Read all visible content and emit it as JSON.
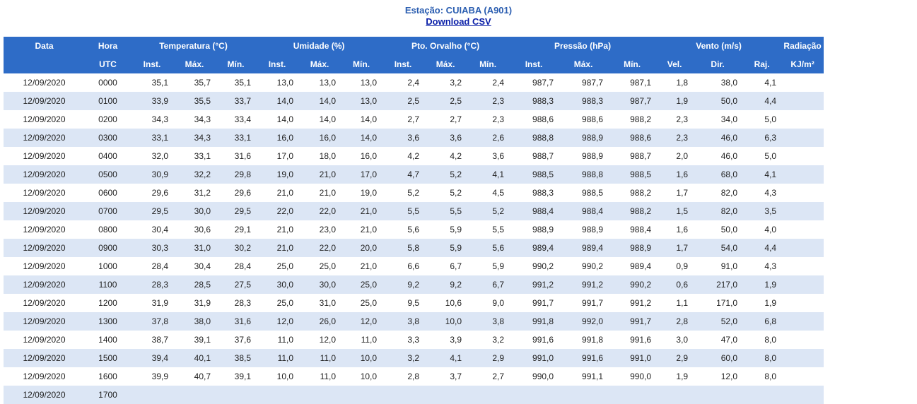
{
  "header": {
    "station": "Estação: CUIABA (A901)",
    "download": "Download CSV"
  },
  "table": {
    "groups": [
      "Data",
      "Hora",
      "Temperatura (°C)",
      "Umidade (%)",
      "Pto. Orvalho (°C)",
      "Pressão (hPa)",
      "Vento (m/s)",
      "Radiação"
    ],
    "sub": [
      "UTC",
      "Inst.",
      "Máx.",
      "Mín.",
      "Inst.",
      "Máx.",
      "Mín.",
      "Inst.",
      "Máx.",
      "Mín.",
      "Inst.",
      "Máx.",
      "Mín.",
      "Vel.",
      "Dir.",
      "Raj.",
      "KJ/m²"
    ],
    "rows": [
      [
        "12/09/2020",
        "0000",
        "35,1",
        "35,7",
        "35,1",
        "13,0",
        "13,0",
        "13,0",
        "2,4",
        "3,2",
        "2,4",
        "987,7",
        "987,7",
        "987,1",
        "1,8",
        "38,0",
        "4,1"
      ],
      [
        "12/09/2020",
        "0100",
        "33,9",
        "35,5",
        "33,7",
        "14,0",
        "14,0",
        "13,0",
        "2,5",
        "2,5",
        "2,3",
        "988,3",
        "988,3",
        "987,7",
        "1,9",
        "50,0",
        "4,4"
      ],
      [
        "12/09/2020",
        "0200",
        "34,3",
        "34,3",
        "33,4",
        "14,0",
        "14,0",
        "14,0",
        "2,7",
        "2,7",
        "2,3",
        "988,6",
        "988,6",
        "988,2",
        "2,3",
        "34,0",
        "5,0"
      ],
      [
        "12/09/2020",
        "0300",
        "33,1",
        "34,3",
        "33,1",
        "16,0",
        "16,0",
        "14,0",
        "3,6",
        "3,6",
        "2,6",
        "988,8",
        "988,9",
        "988,6",
        "2,3",
        "46,0",
        "6,3"
      ],
      [
        "12/09/2020",
        "0400",
        "32,0",
        "33,1",
        "31,6",
        "17,0",
        "18,0",
        "16,0",
        "4,2",
        "4,2",
        "3,6",
        "988,7",
        "988,9",
        "988,7",
        "2,0",
        "46,0",
        "5,0"
      ],
      [
        "12/09/2020",
        "0500",
        "30,9",
        "32,2",
        "29,8",
        "19,0",
        "21,0",
        "17,0",
        "4,7",
        "5,2",
        "4,1",
        "988,5",
        "988,8",
        "988,5",
        "1,6",
        "68,0",
        "4,1"
      ],
      [
        "12/09/2020",
        "0600",
        "29,6",
        "31,2",
        "29,6",
        "21,0",
        "21,0",
        "19,0",
        "5,2",
        "5,2",
        "4,5",
        "988,3",
        "988,5",
        "988,2",
        "1,7",
        "82,0",
        "4,3"
      ],
      [
        "12/09/2020",
        "0700",
        "29,5",
        "30,0",
        "29,5",
        "22,0",
        "22,0",
        "21,0",
        "5,5",
        "5,5",
        "5,2",
        "988,4",
        "988,4",
        "988,2",
        "1,5",
        "82,0",
        "3,5"
      ],
      [
        "12/09/2020",
        "0800",
        "30,4",
        "30,6",
        "29,1",
        "21,0",
        "23,0",
        "21,0",
        "5,6",
        "5,9",
        "5,5",
        "988,9",
        "988,9",
        "988,4",
        "1,6",
        "50,0",
        "4,0"
      ],
      [
        "12/09/2020",
        "0900",
        "30,3",
        "31,0",
        "30,2",
        "21,0",
        "22,0",
        "20,0",
        "5,8",
        "5,9",
        "5,6",
        "989,4",
        "989,4",
        "988,9",
        "1,7",
        "54,0",
        "4,4"
      ],
      [
        "12/09/2020",
        "1000",
        "28,4",
        "30,4",
        "28,4",
        "25,0",
        "25,0",
        "21,0",
        "6,6",
        "6,7",
        "5,9",
        "990,2",
        "990,2",
        "989,4",
        "0,9",
        "91,0",
        "4,3"
      ],
      [
        "12/09/2020",
        "1100",
        "28,3",
        "28,5",
        "27,5",
        "30,0",
        "30,0",
        "25,0",
        "9,2",
        "9,2",
        "6,7",
        "991,2",
        "991,2",
        "990,2",
        "0,6",
        "217,0",
        "1,9"
      ],
      [
        "12/09/2020",
        "1200",
        "31,9",
        "31,9",
        "28,3",
        "25,0",
        "31,0",
        "25,0",
        "9,5",
        "10,6",
        "9,0",
        "991,7",
        "991,7",
        "991,2",
        "1,1",
        "171,0",
        "1,9"
      ],
      [
        "12/09/2020",
        "1300",
        "37,8",
        "38,0",
        "31,6",
        "12,0",
        "26,0",
        "12,0",
        "3,8",
        "10,0",
        "3,8",
        "991,8",
        "992,0",
        "991,7",
        "2,8",
        "52,0",
        "6,8"
      ],
      [
        "12/09/2020",
        "1400",
        "38,7",
        "39,1",
        "37,6",
        "11,0",
        "12,0",
        "11,0",
        "3,3",
        "3,9",
        "3,2",
        "991,6",
        "991,8",
        "991,6",
        "3,0",
        "47,0",
        "8,0"
      ],
      [
        "12/09/2020",
        "1500",
        "39,4",
        "40,1",
        "38,5",
        "11,0",
        "11,0",
        "10,0",
        "3,2",
        "4,1",
        "2,9",
        "991,0",
        "991,6",
        "991,0",
        "2,9",
        "60,0",
        "8,0"
      ],
      [
        "12/09/2020",
        "1600",
        "39,9",
        "40,7",
        "39,1",
        "10,0",
        "11,0",
        "10,0",
        "2,8",
        "3,7",
        "2,7",
        "990,0",
        "991,1",
        "990,0",
        "1,9",
        "12,0",
        "8,0"
      ],
      [
        "12/09/2020",
        "1700"
      ]
    ]
  }
}
